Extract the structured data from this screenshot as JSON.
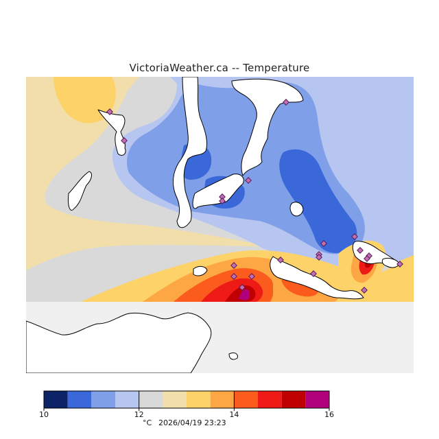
{
  "title": "VictoriaWeather.ca -- Temperature",
  "legend": {
    "ticks": [
      {
        "value": "10",
        "index": 0
      },
      {
        "value": "12",
        "index": 4
      },
      {
        "value": "14",
        "index": 8
      },
      {
        "value": "16",
        "index": 12
      }
    ],
    "bins": [
      {
        "from": 10.0,
        "to": 10.5,
        "color": "#0c2467"
      },
      {
        "from": 10.5,
        "to": 11.0,
        "color": "#3a68d8"
      },
      {
        "from": 11.0,
        "to": 11.5,
        "color": "#7f9fe9"
      },
      {
        "from": 11.5,
        "to": 12.0,
        "color": "#b7c6f1"
      },
      {
        "from": 12.0,
        "to": 12.5,
        "color": "#d9d9d9"
      },
      {
        "from": 12.5,
        "to": 13.0,
        "color": "#f1deaa"
      },
      {
        "from": 13.0,
        "to": 13.5,
        "color": "#fdd269"
      },
      {
        "from": 13.5,
        "to": 14.0,
        "color": "#fca743"
      },
      {
        "from": 14.0,
        "to": 14.5,
        "color": "#fb5c1e"
      },
      {
        "from": 14.5,
        "to": 15.0,
        "color": "#ee1a16"
      },
      {
        "from": 15.0,
        "to": 15.5,
        "color": "#c00000"
      },
      {
        "from": 15.5,
        "to": 16.0,
        "color": "#b0007a"
      }
    ],
    "unit": "°C",
    "timestamp": "2026/04/19 23:23"
  },
  "colors": {
    "no_data_background": "#f0f0f0",
    "coastline": "#000000",
    "station_marker_edge": "#5a1a5a"
  }
}
